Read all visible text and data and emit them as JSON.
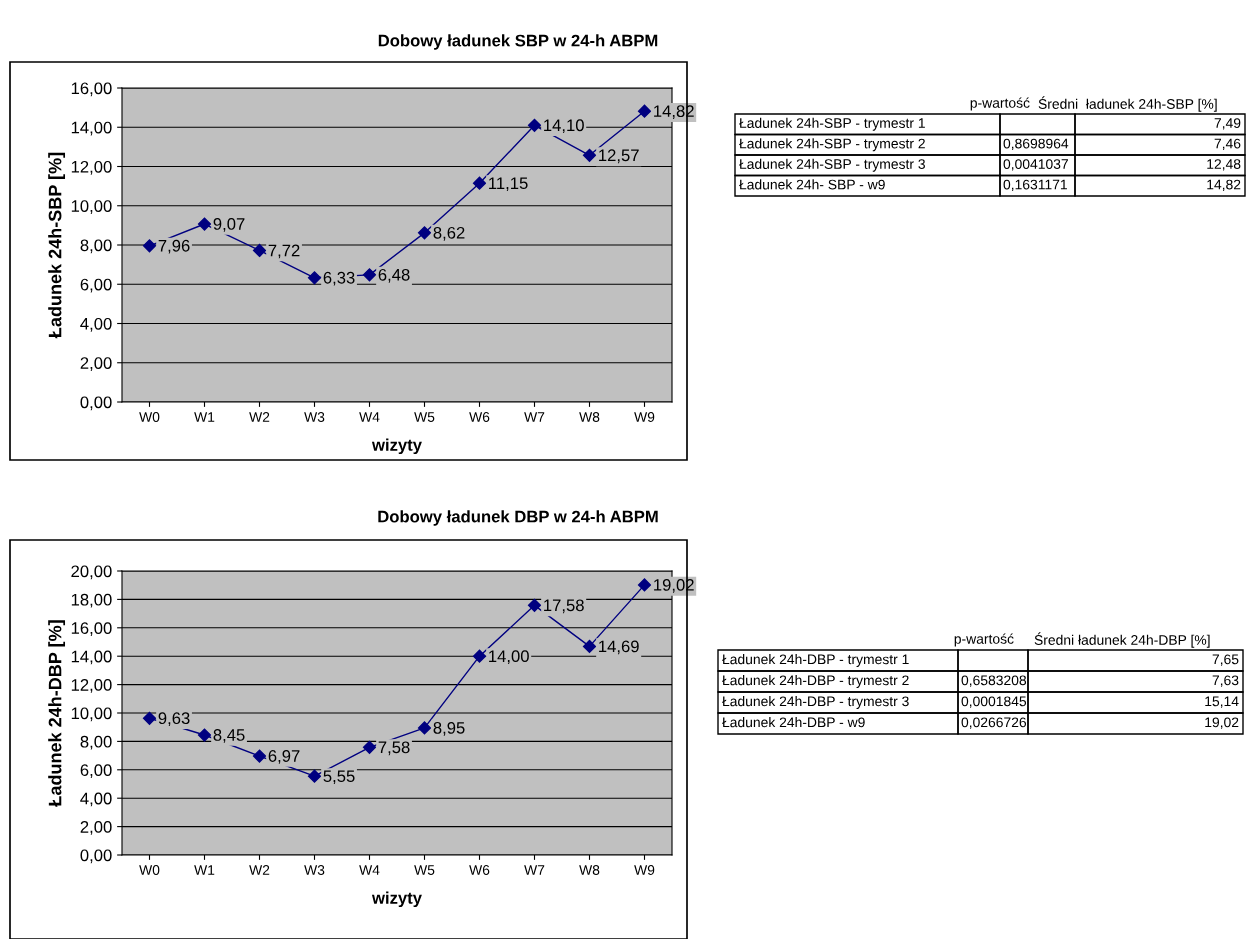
{
  "chart_data": [
    {
      "type": "line",
      "title": "Dobowy ładunek SBP w 24-h ABPM",
      "xlabel": "wizyty",
      "ylabel": "Ładunek 24h-SBP [%]",
      "categories": [
        "W0",
        "W1",
        "W2",
        "W3",
        "W4",
        "W5",
        "W6",
        "W7",
        "W8",
        "W9"
      ],
      "series": [
        {
          "color": "#000080",
          "values": [
            7.96,
            9.07,
            7.72,
            6.33,
            6.48,
            8.62,
            11.15,
            14.1,
            12.57,
            14.82
          ],
          "value_labels": [
            "7,96",
            "9,07",
            "7,72",
            "6,33",
            "6,48",
            "8,62",
            "11,15",
            "14,10",
            "12,57",
            "14,82"
          ]
        }
      ],
      "ylim": [
        0,
        16
      ],
      "yticks": [
        {
          "value": 0,
          "label": "0,00"
        },
        {
          "value": 2,
          "label": "2,00"
        },
        {
          "value": 4,
          "label": "4,00"
        },
        {
          "value": 6,
          "label": "6,00"
        },
        {
          "value": 8,
          "label": "8,00"
        },
        {
          "value": 10,
          "label": "10,00"
        },
        {
          "value": 12,
          "label": "12,00"
        },
        {
          "value": 14,
          "label": "14,00"
        },
        {
          "value": 16,
          "label": "16,00"
        }
      ],
      "grid": "y",
      "marker": "diamond",
      "line_style": "solid",
      "legend": false
    },
    {
      "type": "other",
      "categories": [
        "p-wartość",
        "Średni  ładunek 24h-SBP [%]"
      ],
      "y_categories": [
        "Ładunek 24h-SBP - trymestr 1",
        "Ładunek 24h-SBP - trymestr 2",
        "Ładunek 24h-SBP - trymestr 3",
        "Ładunek 24h- SBP - w9"
      ],
      "cell_labels": [
        [
          null,
          "7,49"
        ],
        [
          "0,8698964",
          "7,46"
        ],
        [
          "0,0041037",
          "12,48"
        ],
        [
          "0,1631171",
          "14,82"
        ]
      ]
    },
    {
      "type": "line",
      "title": "Dobowy ładunek DBP w 24-h ABPM",
      "xlabel": "wizyty",
      "ylabel": "Ładunek 24h-DBP [%]",
      "categories": [
        "W0",
        "W1",
        "W2",
        "W3",
        "W4",
        "W5",
        "W6",
        "W7",
        "W8",
        "W9"
      ],
      "series": [
        {
          "color": "#000080",
          "values": [
            9.63,
            8.45,
            6.97,
            5.55,
            7.58,
            8.95,
            14.0,
            17.58,
            14.69,
            19.02
          ],
          "value_labels": [
            "9,63",
            "8,45",
            "6,97",
            "5,55",
            "7,58",
            "8,95",
            "14,00",
            "17,58",
            "14,69",
            "19,02"
          ]
        }
      ],
      "ylim": [
        0,
        20
      ],
      "yticks": [
        {
          "value": 0,
          "label": "0,00"
        },
        {
          "value": 2,
          "label": "2,00"
        },
        {
          "value": 4,
          "label": "4,00"
        },
        {
          "value": 6,
          "label": "6,00"
        },
        {
          "value": 8,
          "label": "8,00"
        },
        {
          "value": 10,
          "label": "10,00"
        },
        {
          "value": 12,
          "label": "12,00"
        },
        {
          "value": 14,
          "label": "14,00"
        },
        {
          "value": 16,
          "label": "16,00"
        },
        {
          "value": 18,
          "label": "18,00"
        },
        {
          "value": 20,
          "label": "20,00"
        }
      ],
      "grid": "y",
      "marker": "diamond",
      "line_style": "solid",
      "legend": false
    },
    {
      "type": "other",
      "categories": [
        "p-wartość",
        "Średni ładunek 24h-DBP [%]"
      ],
      "y_categories": [
        "Ładunek 24h-DBP - trymestr 1",
        "Ładunek 24h-DBP - trymestr 2",
        "Ładunek 24h-DBP - trymestr 3",
        "Ładunek 24h-DBP - w9"
      ],
      "cell_labels": [
        [
          null,
          "7,65"
        ],
        [
          "0,6583208",
          "7,63"
        ],
        [
          "0,0001845",
          "15,14"
        ],
        [
          "0,0266726",
          "19,02"
        ]
      ]
    }
  ]
}
